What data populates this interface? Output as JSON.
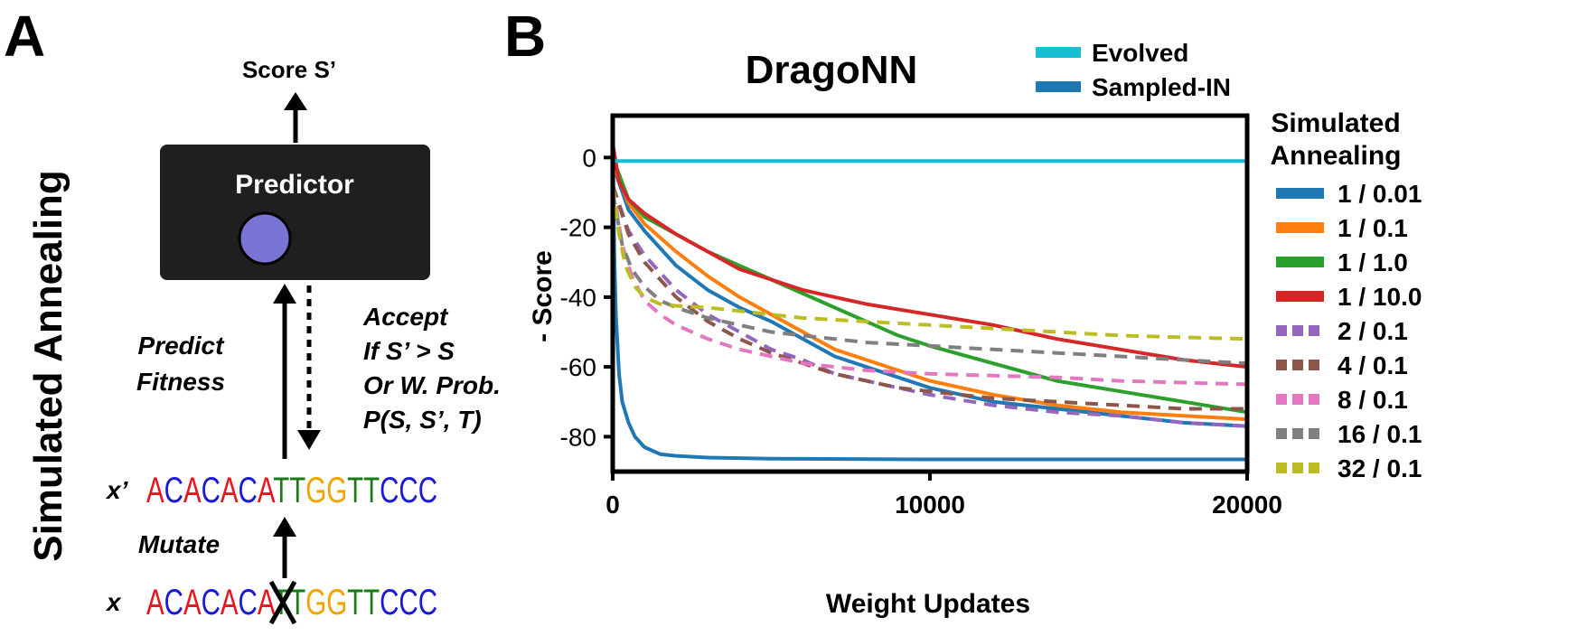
{
  "panel_a": {
    "letter": "A",
    "side_title": "Simulated Annealing",
    "score_label": "Score S’",
    "predictor_label": "Predictor",
    "predict_label_line1": "Predict",
    "predict_label_line2": "Fitness",
    "accept_lines": [
      "Accept",
      "If S’ > S",
      "Or W. Prob.",
      "P(S, S’, T)"
    ],
    "mutate_label": "Mutate",
    "x_prime_label": "x’",
    "x_label": "x",
    "sequence": "ACACACATTGGTTCCC",
    "mutated_index": 7,
    "colors": {
      "A": "#e8141e",
      "C": "#1a1ad6",
      "G": "#f0a400",
      "T": "#1a7a1a",
      "node": "#7a74d6",
      "box": "#1f1f1f"
    }
  },
  "chart_data": {
    "panel_letter": "B",
    "type": "line",
    "title": "DragoNN",
    "xlabel": "Weight Updates",
    "ylabel": "- Score",
    "xlim": [
      0,
      20000
    ],
    "ylim": [
      -90,
      12
    ],
    "xticks": [
      0,
      10000,
      20000
    ],
    "yticks": [
      0,
      -20,
      -40,
      -60,
      -80
    ],
    "legend_top": [
      {
        "name": "Evolved",
        "color": "#17becf"
      },
      {
        "name": "Sampled-IN",
        "color": "#1f77b4"
      }
    ],
    "legend_right_title": [
      "Simulated",
      "Annealing"
    ],
    "series": [
      {
        "name": "Evolved",
        "legend_group": "top",
        "color": "#17becf",
        "dash": false,
        "x": [
          0,
          20000
        ],
        "y": [
          -1,
          -1
        ]
      },
      {
        "name": "Sampled-IN",
        "legend_group": "top",
        "color": "#1f77b4",
        "dash": false,
        "x": [
          0,
          50,
          100,
          200,
          300,
          500,
          700,
          1000,
          1500,
          2000,
          3000,
          5000,
          10000,
          15000,
          20000
        ],
        "y": [
          4,
          -28,
          -45,
          -62,
          -70,
          -76,
          -80,
          -83,
          -85,
          -85.5,
          -86,
          -86.3,
          -86.5,
          -86.5,
          -86.5
        ]
      },
      {
        "name": "1 / 0.01",
        "color": "#1f77b4",
        "dash": false,
        "x": [
          0,
          500,
          1000,
          2000,
          3000,
          4000,
          5000,
          6000,
          7000,
          8000,
          9000,
          10000,
          12000,
          14000,
          16000,
          18000,
          20000
        ],
        "y": [
          -2,
          -15,
          -21,
          -31,
          -38,
          -43,
          -47,
          -52,
          -57,
          -60,
          -63,
          -66,
          -70,
          -72,
          -74,
          -76,
          -77
        ]
      },
      {
        "name": "1 / 0.1",
        "color": "#ff7f0e",
        "dash": false,
        "x": [
          0,
          500,
          1000,
          2000,
          3000,
          4000,
          5000,
          6000,
          7000,
          8000,
          9000,
          10000,
          12000,
          14000,
          16000,
          18000,
          20000
        ],
        "y": [
          -2,
          -13,
          -19,
          -27,
          -34,
          -40,
          -45,
          -50,
          -55,
          -58,
          -61,
          -64,
          -68,
          -71,
          -73,
          -74,
          -75
        ]
      },
      {
        "name": "1 / 1.0",
        "color": "#2ca02c",
        "dash": false,
        "x": [
          0,
          500,
          1000,
          2000,
          3000,
          4000,
          5000,
          6000,
          7000,
          8000,
          9000,
          10000,
          12000,
          14000,
          16000,
          18000,
          20000
        ],
        "y": [
          0,
          -12,
          -17,
          -22,
          -27,
          -31,
          -35,
          -39,
          -43,
          -47,
          -51,
          -54,
          -59,
          -64,
          -67,
          -70,
          -73
        ]
      },
      {
        "name": "1 / 10.0",
        "color": "#d62728",
        "dash": false,
        "x": [
          0,
          200,
          500,
          1000,
          2000,
          3000,
          4000,
          5000,
          6000,
          7000,
          8000,
          10000,
          12000,
          14000,
          16000,
          18000,
          20000
        ],
        "y": [
          4,
          -7,
          -12,
          -16,
          -22,
          -27,
          -32,
          -35,
          -38,
          -40,
          -42,
          -45,
          -48,
          -52,
          -55,
          -58,
          -60
        ]
      },
      {
        "name": "2 / 0.1",
        "color": "#9467bd",
        "dash": true,
        "x": [
          0,
          500,
          1000,
          2000,
          3000,
          4000,
          5000,
          6000,
          7000,
          8000,
          9000,
          10000,
          12000,
          14000,
          16000,
          18000,
          20000
        ],
        "y": [
          -8,
          -21,
          -28,
          -38,
          -45,
          -50,
          -55,
          -58,
          -62,
          -64,
          -66,
          -68,
          -71,
          -73,
          -74,
          -76,
          -77
        ]
      },
      {
        "name": "4 / 0.1",
        "color": "#8c564b",
        "dash": true,
        "x": [
          0,
          500,
          1000,
          2000,
          3000,
          4000,
          5000,
          6000,
          7000,
          8000,
          9000,
          10000,
          12000,
          14000,
          16000,
          18000,
          20000
        ],
        "y": [
          -8,
          -22,
          -30,
          -40,
          -47,
          -52,
          -56,
          -59,
          -62,
          -64,
          -66,
          -67,
          -69,
          -70,
          -71,
          -72,
          -72
        ]
      },
      {
        "name": "8 / 0.1",
        "color": "#e377c2",
        "dash": true,
        "x": [
          0,
          300,
          600,
          1000,
          1500,
          2000,
          3000,
          4000,
          5000,
          6000,
          7000,
          8000,
          10000,
          12000,
          14000,
          16000,
          18000,
          20000
        ],
        "y": [
          -8,
          -25,
          -34,
          -41,
          -45,
          -48,
          -52,
          -55,
          -57,
          -59,
          -60,
          -61,
          -62,
          -62.5,
          -63,
          -64,
          -64.5,
          -65
        ]
      },
      {
        "name": "16 / 0.1",
        "color": "#7f7f7f",
        "dash": true,
        "x": [
          0,
          300,
          600,
          1000,
          1500,
          2000,
          3000,
          4000,
          5000,
          6000,
          7000,
          8000,
          10000,
          12000,
          14000,
          16000,
          18000,
          20000
        ],
        "y": [
          -10,
          -25,
          -32,
          -37,
          -41,
          -43,
          -46,
          -48,
          -50,
          -51,
          -52,
          -53,
          -54,
          -55,
          -56,
          -57,
          -58,
          -59
        ]
      },
      {
        "name": "32 / 0.1",
        "color": "#bcbd22",
        "dash": true,
        "x": [
          0,
          200,
          400,
          700,
          1000,
          1500,
          2000,
          3000,
          4000,
          5000,
          6000,
          8000,
          10000,
          12000,
          14000,
          16000,
          18000,
          20000
        ],
        "y": [
          -8,
          -22,
          -31,
          -37,
          -40,
          -42,
          -42.5,
          -43,
          -44,
          -45,
          -46,
          -47,
          -48,
          -49,
          -50,
          -51,
          -51.5,
          -52
        ]
      }
    ]
  }
}
